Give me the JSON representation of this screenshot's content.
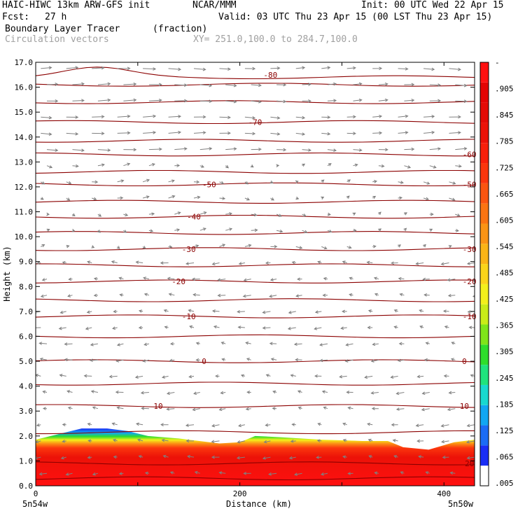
{
  "header": {
    "model": "HAIC-HIWC 13km ARW-GFS init",
    "org": "NCAR/MMM",
    "init": "Init: 00 UTC Wed 22 Apr 15",
    "fcst_label": "Fcst:",
    "fcst_value": "27 h",
    "valid": "Valid: 03 UTC Thu 23 Apr 15 (00 LST Thu 23 Apr 15)",
    "field": "Boundary Layer Tracer",
    "units": "(fraction)",
    "vectors": "Circulation vectors",
    "xy": "XY= 251.0,100.0 to 284.7,100.0"
  },
  "colors": {
    "contour": "#8b0000",
    "vector": "#808080",
    "colorbar": [
      "#ffffff",
      "#1a2ef5",
      "#1b6cf5",
      "#11a7f2",
      "#18d9cf",
      "#1fe37d",
      "#2ede2c",
      "#7fe51a",
      "#c9ec18",
      "#f3f01b",
      "#fbd41a",
      "#fbb417",
      "#fb9415",
      "#fb7412",
      "#fb5510",
      "#fb360d",
      "#f8200b",
      "#ec1208",
      "#e40a06",
      "#e30303",
      "#ff1010"
    ]
  },
  "chart_data": {
    "type": "heatmap",
    "xlabel": "Distance (km)",
    "ylabel": "Height (km)",
    "xlim": [
      0,
      430
    ],
    "ylim": [
      0,
      17
    ],
    "x_ticks": [
      "0",
      "200",
      "400"
    ],
    "y_ticks": [
      "0.0",
      "1.0",
      "2.0",
      "3.0",
      "4.0",
      "5.0",
      "6.0",
      "7.0",
      "8.0",
      "9.0",
      "10.0",
      "11.0",
      "12.0",
      "13.0",
      "14.0",
      "15.0",
      "16.0",
      "17.0"
    ],
    "x_endpoints": {
      "left": "5n54w",
      "right": "5n50w"
    },
    "colorbar_labels": [
      ".005",
      ".065",
      ".125",
      ".185",
      ".245",
      ".305",
      ".365",
      ".425",
      ".485",
      ".545",
      ".605",
      ".665",
      ".725",
      ".785",
      ".845",
      ".905",
      "-"
    ],
    "tracer_top_km": [
      [
        0,
        1.85
      ],
      [
        20,
        2.05
      ],
      [
        45,
        2.3
      ],
      [
        70,
        2.3
      ],
      [
        90,
        2.2
      ],
      [
        110,
        2.0
      ],
      [
        140,
        1.9
      ],
      [
        180,
        1.7
      ],
      [
        200,
        1.75
      ],
      [
        215,
        2.0
      ],
      [
        240,
        1.95
      ],
      [
        280,
        1.85
      ],
      [
        320,
        1.8
      ],
      [
        345,
        1.8
      ],
      [
        360,
        1.55
      ],
      [
        385,
        1.45
      ],
      [
        410,
        1.75
      ],
      [
        430,
        1.85
      ]
    ],
    "temperature_contours_C": [
      {
        "value": -80,
        "height_km": 16.5
      },
      {
        "value": -70,
        "height_km": 14.6
      },
      {
        "value": -60,
        "height_km": 13.3
      },
      {
        "value": -50,
        "height_km": 12.1
      },
      {
        "value": -40,
        "height_km": 10.8
      },
      {
        "value": -30,
        "height_km": 9.5
      },
      {
        "value": -20,
        "height_km": 8.2
      },
      {
        "value": -10,
        "height_km": 6.8
      },
      {
        "value": 0,
        "height_km": 5.0
      },
      {
        "value": 10,
        "height_km": 3.2
      },
      {
        "value": 20,
        "height_km": 0.9
      }
    ],
    "contour_labels": [
      {
        "text": "-80",
        "x_km": 230,
        "height_km": 16.5
      },
      {
        "text": "-70",
        "x_km": 215,
        "height_km": 14.6
      },
      {
        "text": "-60",
        "x_km": 425,
        "height_km": 13.3
      },
      {
        "text": "-50",
        "x_km": 170,
        "height_km": 12.1
      },
      {
        "text": "-50",
        "x_km": 425,
        "height_km": 12.1
      },
      {
        "text": "-40",
        "x_km": 155,
        "height_km": 10.8
      },
      {
        "text": "-30",
        "x_km": 150,
        "height_km": 9.5
      },
      {
        "text": "-30",
        "x_km": 425,
        "height_km": 9.5
      },
      {
        "text": "-20",
        "x_km": 140,
        "height_km": 8.2
      },
      {
        "text": "-20",
        "x_km": 425,
        "height_km": 8.2
      },
      {
        "text": "-10",
        "x_km": 150,
        "height_km": 6.8
      },
      {
        "text": "-10",
        "x_km": 425,
        "height_km": 6.8
      },
      {
        "text": "0",
        "x_km": 165,
        "height_km": 5.0
      },
      {
        "text": "0",
        "x_km": 420,
        "height_km": 5.0
      },
      {
        "text": "10",
        "x_km": 120,
        "height_km": 3.2
      },
      {
        "text": "10",
        "x_km": 420,
        "height_km": 3.2
      },
      {
        "text": "20",
        "x_km": 425,
        "height_km": 0.9
      }
    ],
    "extra_contour_heights_km": [
      16.1,
      15.4,
      13.85,
      12.6,
      11.4,
      10.15,
      8.85,
      7.45,
      6.0,
      4.1,
      2.15,
      0.3
    ]
  }
}
